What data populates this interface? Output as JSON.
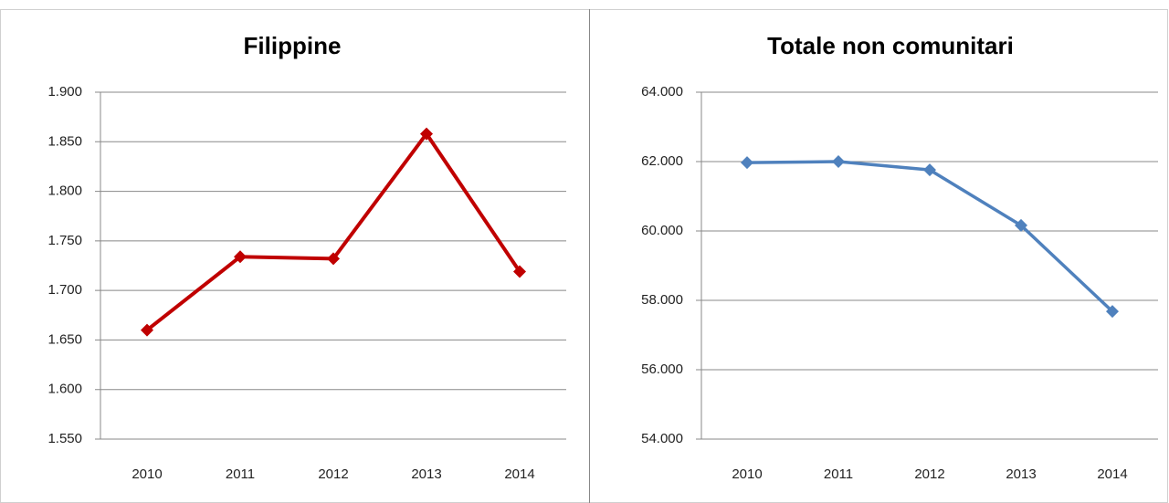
{
  "chart_data": [
    {
      "type": "line",
      "title": "Filippine",
      "categories": [
        "2010",
        "2011",
        "2012",
        "2013",
        "2014"
      ],
      "series": [
        {
          "name": "Filippine",
          "color": "#c00000",
          "values": [
            1660,
            1734,
            1732,
            1858,
            1719
          ]
        }
      ],
      "ylim": [
        1550,
        1900
      ],
      "yticks": [
        {
          "value": 1550,
          "label": "1.550"
        },
        {
          "value": 1600,
          "label": "1.600"
        },
        {
          "value": 1650,
          "label": "1.650"
        },
        {
          "value": 1700,
          "label": "1.700"
        },
        {
          "value": 1750,
          "label": "1.750"
        },
        {
          "value": 1800,
          "label": "1.800"
        },
        {
          "value": 1850,
          "label": "1.850"
        },
        {
          "value": 1900,
          "label": "1.900"
        }
      ],
      "grid": true
    },
    {
      "type": "line",
      "title": "Totale non comunitari",
      "categories": [
        "2010",
        "2011",
        "2012",
        "2013",
        "2014"
      ],
      "series": [
        {
          "name": "Totale non comunitari",
          "color": "#4f81bd",
          "values": [
            61970,
            62000,
            61760,
            60160,
            57680
          ]
        }
      ],
      "ylim": [
        54000,
        64000
      ],
      "yticks": [
        {
          "value": 54000,
          "label": "54.000"
        },
        {
          "value": 56000,
          "label": "56.000"
        },
        {
          "value": 58000,
          "label": "58.000"
        },
        {
          "value": 60000,
          "label": "60.000"
        },
        {
          "value": 62000,
          "label": "62.000"
        },
        {
          "value": 64000,
          "label": "64.000"
        }
      ],
      "grid": true
    }
  ]
}
